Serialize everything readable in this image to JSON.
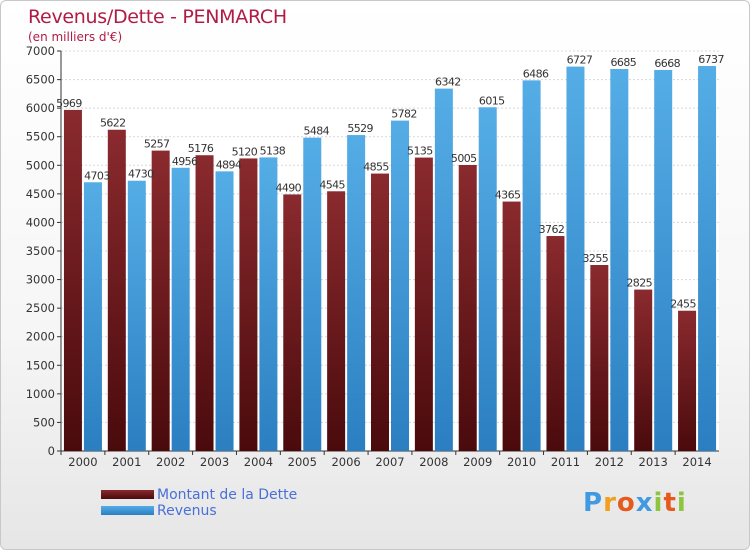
{
  "header": {
    "title": "Revenus/Dette - PENMARCH",
    "subtitle": "(en milliers d'€)"
  },
  "colors": {
    "debt": "#7a2226",
    "debt_dark": "#4a0a0c",
    "revenue": "#4aa5e2",
    "revenue_dark": "#2b7fc1",
    "title": "#b01c45",
    "legend_text": "#4a6fd9"
  },
  "chart_data": {
    "type": "bar",
    "title": "Revenus/Dette - PENMARCH",
    "subtitle": "(en milliers d'€)",
    "categories": [
      "2000",
      "2001",
      "2002",
      "2003",
      "2004",
      "2005",
      "2006",
      "2007",
      "2008",
      "2009",
      "2010",
      "2011",
      "2012",
      "2013",
      "2014"
    ],
    "series": [
      {
        "name": "Montant de la Dette",
        "values": [
          5969,
          5622,
          5257,
          5176,
          5120,
          4490,
          4545,
          4855,
          5135,
          5005,
          4365,
          3762,
          3255,
          2825,
          2455
        ],
        "labels": [
          "5969",
          "5622",
          "5257",
          "5176",
          "5120",
          "4490",
          "4545",
          "4855",
          "5135",
          "5005",
          "4365",
          "3762",
          "3255",
          "2825",
          "2455"
        ]
      },
      {
        "name": "Revenus",
        "values": [
          4703,
          4730,
          4956,
          4894,
          5138,
          5484,
          5529,
          5782,
          6342,
          6015,
          6486,
          6727,
          6685,
          6668,
          6737
        ],
        "labels": [
          "4703",
          "4730",
          "4956",
          "4894",
          "5138",
          "5484",
          "5529",
          "5782",
          "6342",
          "6015",
          "6486",
          "6727",
          "6685",
          "6668",
          "6737"
        ]
      }
    ],
    "ylim": [
      0,
      7000
    ],
    "yticks": [
      0,
      500,
      1000,
      1500,
      2000,
      2500,
      3000,
      3500,
      4000,
      4500,
      5000,
      5500,
      6000,
      6500,
      7000
    ],
    "grid": true,
    "legend_position": "bottom-left"
  },
  "legend": {
    "debt_label": "Montant de la Dette",
    "revenue_label": "Revenus"
  },
  "logo": {
    "letters": [
      "P",
      "r",
      "o",
      "x",
      "i",
      "t",
      "i"
    ],
    "letter_colors": [
      "#3f9ae0",
      "#f0a020",
      "#e65a1e",
      "#3f9ae0",
      "#8cc63f",
      "#e65a1e",
      "#8cc63f"
    ]
  }
}
